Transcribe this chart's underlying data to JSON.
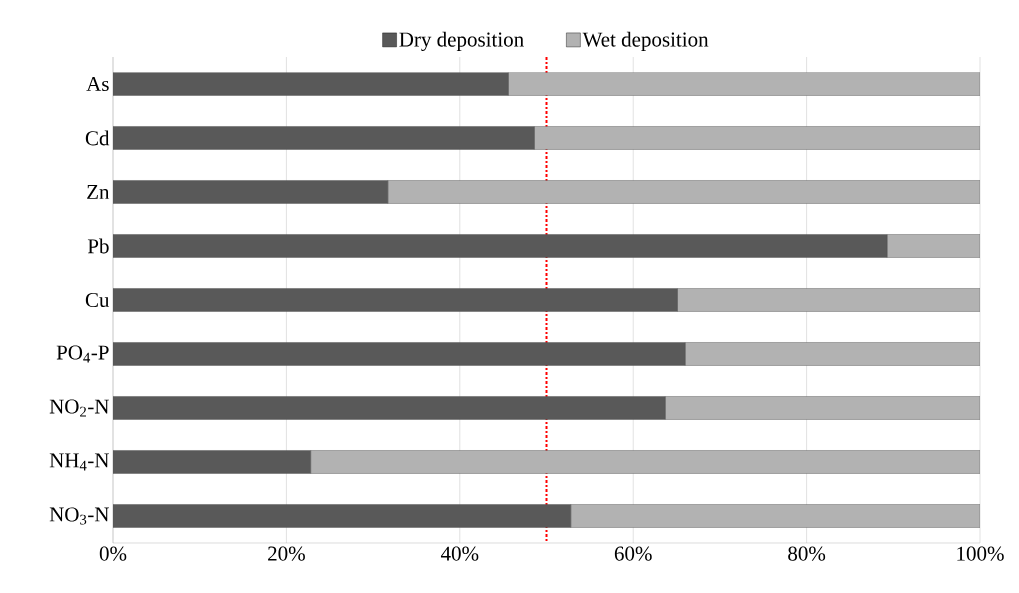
{
  "chart_data": {
    "type": "bar",
    "orientation": "horizontal",
    "stacked": true,
    "categories": [
      "As",
      "Cd",
      "Zn",
      "Pb",
      "Cu",
      "PO$_{4}$-P",
      "NO$_{2}$-N",
      "NH$_{4}$-N",
      "NO$_{3}$-N"
    ],
    "series": [
      {
        "name": "Dry deposition",
        "color": "#595959",
        "values": [
          45.6,
          48.6,
          31.7,
          89.3,
          65.1,
          66.0,
          63.7,
          22.8,
          52.8
        ]
      },
      {
        "name": "Wet deposition",
        "color": "#b2b2b2",
        "values": [
          54.4,
          51.4,
          68.3,
          10.7,
          34.9,
          34.0,
          36.3,
          77.2,
          47.2
        ]
      }
    ],
    "xlim": [
      0,
      100
    ],
    "xticks": [
      {
        "value": 0,
        "label": "0%"
      },
      {
        "value": 20,
        "label": "20%"
      },
      {
        "value": 40,
        "label": "40%"
      },
      {
        "value": 60,
        "label": "60%"
      },
      {
        "value": 80,
        "label": "80%"
      },
      {
        "value": 100,
        "label": "100%"
      }
    ],
    "grid": "x",
    "legend": "top",
    "ref_lines": [
      {
        "axis": "x",
        "value": 50,
        "color": "#ff0000",
        "line_style": "dashdot"
      }
    ]
  }
}
